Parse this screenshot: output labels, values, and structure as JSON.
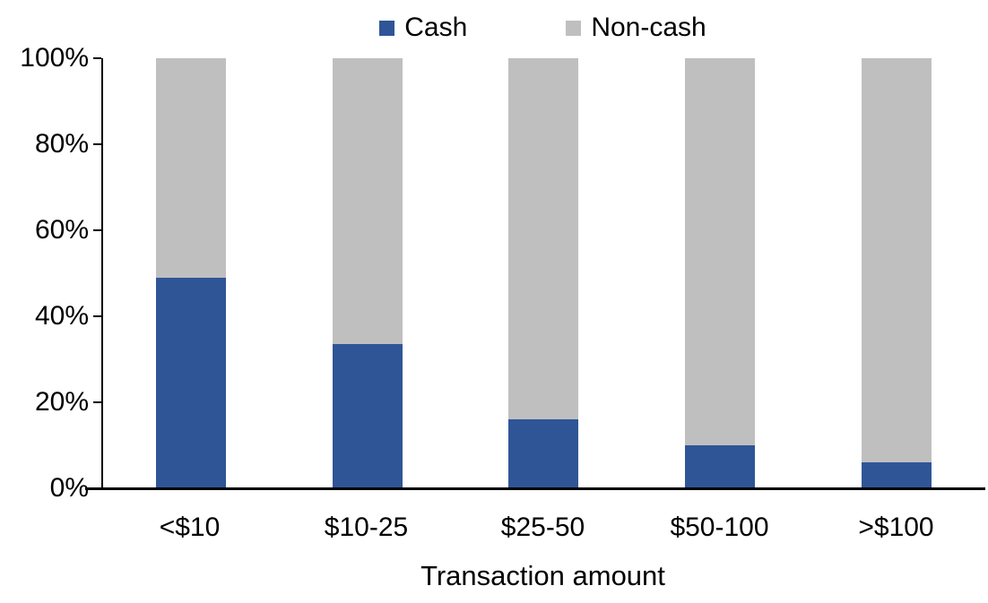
{
  "chart_data": {
    "type": "bar",
    "variant": "stacked-100-percent",
    "title": "",
    "xlabel": "Transaction amount",
    "ylabel": "",
    "categories": [
      "<$10",
      "$10-25",
      "$25-50",
      "$50-100",
      ">$100"
    ],
    "series": [
      {
        "name": "Cash",
        "color": "#2F5596",
        "values": [
          49,
          33.5,
          16,
          10,
          6
        ]
      },
      {
        "name": "Non-cash",
        "color": "#BFBFBF",
        "values": [
          51,
          66.5,
          84,
          90,
          94
        ]
      }
    ],
    "ylim": [
      0,
      100
    ],
    "yticks": [
      {
        "label": "0%",
        "value": 0
      },
      {
        "label": "20%",
        "value": 20
      },
      {
        "label": "40%",
        "value": 40
      },
      {
        "label": "60%",
        "value": 60
      },
      {
        "label": "80%",
        "value": 80
      },
      {
        "label": "100%",
        "value": 100
      }
    ],
    "grid": false,
    "legend_position": "top-center",
    "axis_color": "#000000",
    "background_color": "#FFFFFF"
  }
}
